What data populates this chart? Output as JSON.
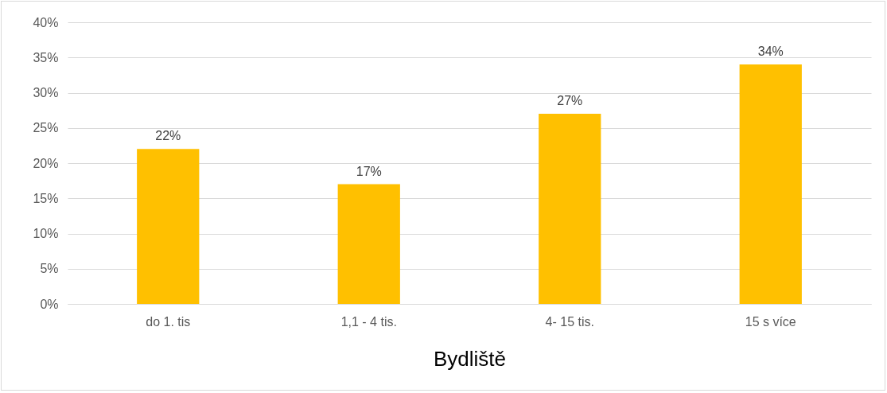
{
  "chart_data": {
    "type": "bar",
    "xlabel": "Bydliště",
    "categories": [
      "do 1. tis",
      "1,1 - 4 tis.",
      "4- 15 tis.",
      "15 s více"
    ],
    "values": [
      22,
      17,
      27,
      34
    ],
    "color": "#ffc000",
    "value_labels": [
      "22%",
      "17%",
      "27%",
      "34%"
    ],
    "ylim": [
      0,
      40
    ],
    "yticks": [
      {
        "value": 0,
        "label": "0%"
      },
      {
        "value": 5,
        "label": "5%"
      },
      {
        "value": 10,
        "label": "10%"
      },
      {
        "value": 15,
        "label": "15%"
      },
      {
        "value": 20,
        "label": "20%"
      },
      {
        "value": 25,
        "label": "25%"
      },
      {
        "value": 30,
        "label": "30%"
      },
      {
        "value": 35,
        "label": "35%"
      },
      {
        "value": 40,
        "label": "40%"
      }
    ],
    "grid": "y"
  }
}
